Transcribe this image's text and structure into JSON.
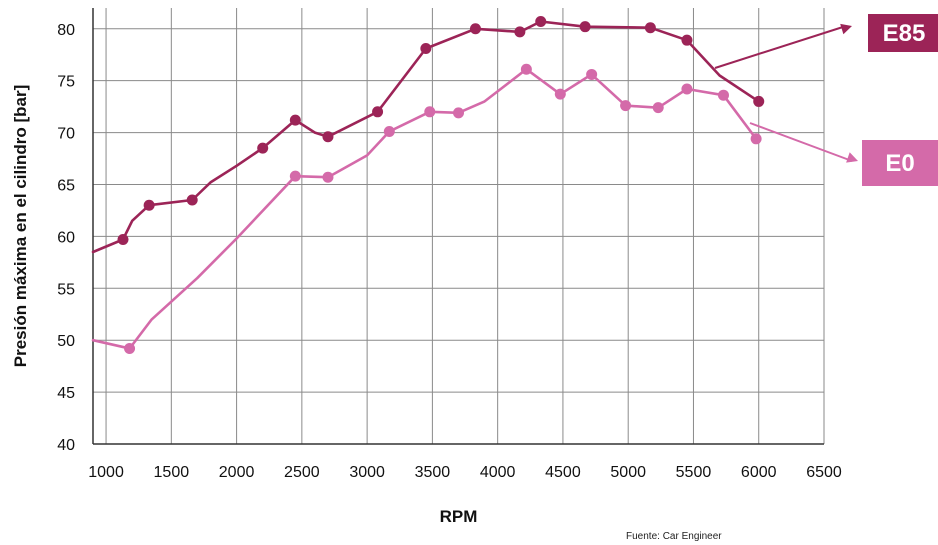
{
  "chart_data": {
    "type": "line",
    "title": "",
    "xlabel": "RPM",
    "ylabel": "Presión máxima en el cilindro [bar]",
    "xlim": [
      900,
      6500
    ],
    "ylim": [
      40,
      82
    ],
    "x_ticks": [
      1000,
      1500,
      2000,
      2500,
      3000,
      3500,
      4000,
      4500,
      5000,
      5500,
      6000,
      6500
    ],
    "y_ticks": [
      40,
      45,
      50,
      55,
      60,
      65,
      70,
      75,
      80
    ],
    "grid": true,
    "legend": "right side labels with arrows",
    "series": [
      {
        "name": "E85",
        "color": "#9c2457",
        "line": [
          [
            900,
            58.5
          ],
          [
            1130,
            59.7
          ],
          [
            1200,
            61.5
          ],
          [
            1330,
            63.0
          ],
          [
            1660,
            63.5
          ],
          [
            1800,
            65.2
          ],
          [
            2000,
            66.8
          ],
          [
            2200,
            68.5
          ],
          [
            2450,
            71.2
          ],
          [
            2600,
            70.0
          ],
          [
            2700,
            69.6
          ],
          [
            3080,
            72.0
          ],
          [
            3450,
            78.1
          ],
          [
            3830,
            80.0
          ],
          [
            4170,
            79.7
          ],
          [
            4330,
            80.7
          ],
          [
            4670,
            80.2
          ],
          [
            5170,
            80.1
          ],
          [
            5450,
            78.9
          ],
          [
            5700,
            75.5
          ],
          [
            6000,
            73.0
          ]
        ],
        "markers": [
          [
            1130,
            59.7
          ],
          [
            1330,
            63.0
          ],
          [
            1660,
            63.5
          ],
          [
            2200,
            68.5
          ],
          [
            2450,
            71.2
          ],
          [
            2700,
            69.6
          ],
          [
            3080,
            72.0
          ],
          [
            3450,
            78.1
          ],
          [
            3830,
            80.0
          ],
          [
            4170,
            79.7
          ],
          [
            4330,
            80.7
          ],
          [
            4670,
            80.2
          ],
          [
            5170,
            80.1
          ],
          [
            5450,
            78.9
          ],
          [
            6000,
            73.0
          ]
        ]
      },
      {
        "name": "E0",
        "color": "#d46aa9",
        "line": [
          [
            900,
            50.0
          ],
          [
            1180,
            49.2
          ],
          [
            1350,
            52.0
          ],
          [
            1700,
            56.0
          ],
          [
            2000,
            59.8
          ],
          [
            2450,
            65.8
          ],
          [
            2700,
            65.7
          ],
          [
            3000,
            67.8
          ],
          [
            3170,
            70.1
          ],
          [
            3480,
            72.0
          ],
          [
            3700,
            71.9
          ],
          [
            3900,
            73.0
          ],
          [
            4220,
            76.1
          ],
          [
            4480,
            73.7
          ],
          [
            4720,
            75.6
          ],
          [
            4980,
            72.6
          ],
          [
            5230,
            72.4
          ],
          [
            5450,
            74.2
          ],
          [
            5730,
            73.6
          ],
          [
            5980,
            69.4
          ]
        ],
        "markers": [
          [
            1180,
            49.2
          ],
          [
            2450,
            65.8
          ],
          [
            2700,
            65.7
          ],
          [
            3170,
            70.1
          ],
          [
            3480,
            72.0
          ],
          [
            3700,
            71.9
          ],
          [
            4220,
            76.1
          ],
          [
            4480,
            73.7
          ],
          [
            4720,
            75.6
          ],
          [
            4980,
            72.6
          ],
          [
            5230,
            72.4
          ],
          [
            5450,
            74.2
          ],
          [
            5730,
            73.6
          ],
          [
            5980,
            69.4
          ]
        ]
      }
    ],
    "annotations": {
      "source": "Fuente: Car Engineer",
      "labels": [
        {
          "text": "E85",
          "bg": "#9c2457"
        },
        {
          "text": "E0",
          "bg": "#d46aa9"
        }
      ]
    }
  }
}
